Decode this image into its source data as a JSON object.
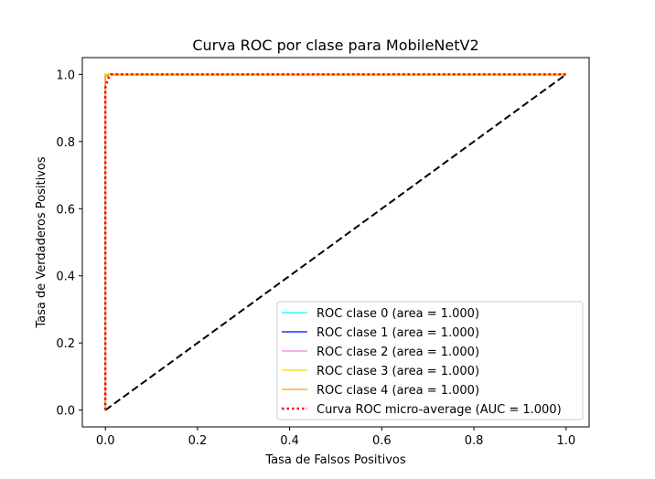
{
  "chart_data": {
    "type": "line",
    "title": "Curva ROC por clase para MobileNetV2",
    "xlabel": "Tasa de Falsos Positivos",
    "ylabel": "Tasa de Verdaderos Positivos",
    "xlim": [
      -0.05,
      1.05
    ],
    "ylim": [
      -0.05,
      1.05
    ],
    "xticks": [
      0.0,
      0.2,
      0.4,
      0.6,
      0.8,
      1.0
    ],
    "yticks": [
      0.0,
      0.2,
      0.4,
      0.6,
      0.8,
      1.0
    ],
    "tick_labels": [
      "0.0",
      "0.2",
      "0.4",
      "0.6",
      "0.8",
      "1.0"
    ],
    "grid": false,
    "legend_position": "lower-right",
    "series": [
      {
        "name": "ROC clase 0 (area = 1.000)",
        "color": "#00ffff",
        "style": "solid",
        "x": [
          0.0,
          0.0,
          1.0
        ],
        "y": [
          0.0,
          1.0,
          1.0
        ]
      },
      {
        "name": "ROC clase 1 (area = 1.000)",
        "color": "#0000ff",
        "style": "solid",
        "x": [
          0.0,
          0.0,
          1.0
        ],
        "y": [
          0.0,
          1.0,
          1.0
        ]
      },
      {
        "name": "ROC clase 2 (area = 1.000)",
        "color": "#ee82ee",
        "style": "solid",
        "x": [
          0.0,
          0.0,
          1.0
        ],
        "y": [
          0.0,
          1.0,
          1.0
        ]
      },
      {
        "name": "ROC clase 3 (area = 1.000)",
        "color": "#ffd700",
        "style": "solid",
        "x": [
          0.0,
          0.0,
          1.0
        ],
        "y": [
          0.0,
          1.0,
          1.0
        ]
      },
      {
        "name": "ROC clase 4 (area = 1.000)",
        "color": "#ffa500",
        "style": "solid",
        "x": [
          0.0,
          0.0,
          0.006,
          0.006,
          1.0
        ],
        "y": [
          0.0,
          0.995,
          0.995,
          1.0,
          1.0
        ]
      },
      {
        "name": "Curva ROC micro-average (AUC = 1.000)",
        "color": "#ff0000",
        "style": "dotted",
        "x": [
          0.0,
          0.0,
          0.003,
          0.006,
          0.012,
          1.0
        ],
        "y": [
          0.0,
          0.96,
          0.975,
          0.988,
          1.0,
          1.0
        ]
      }
    ],
    "reference_line": {
      "color": "#000000",
      "style": "dashed",
      "x": [
        0.0,
        1.0
      ],
      "y": [
        0.0,
        1.0
      ]
    }
  }
}
